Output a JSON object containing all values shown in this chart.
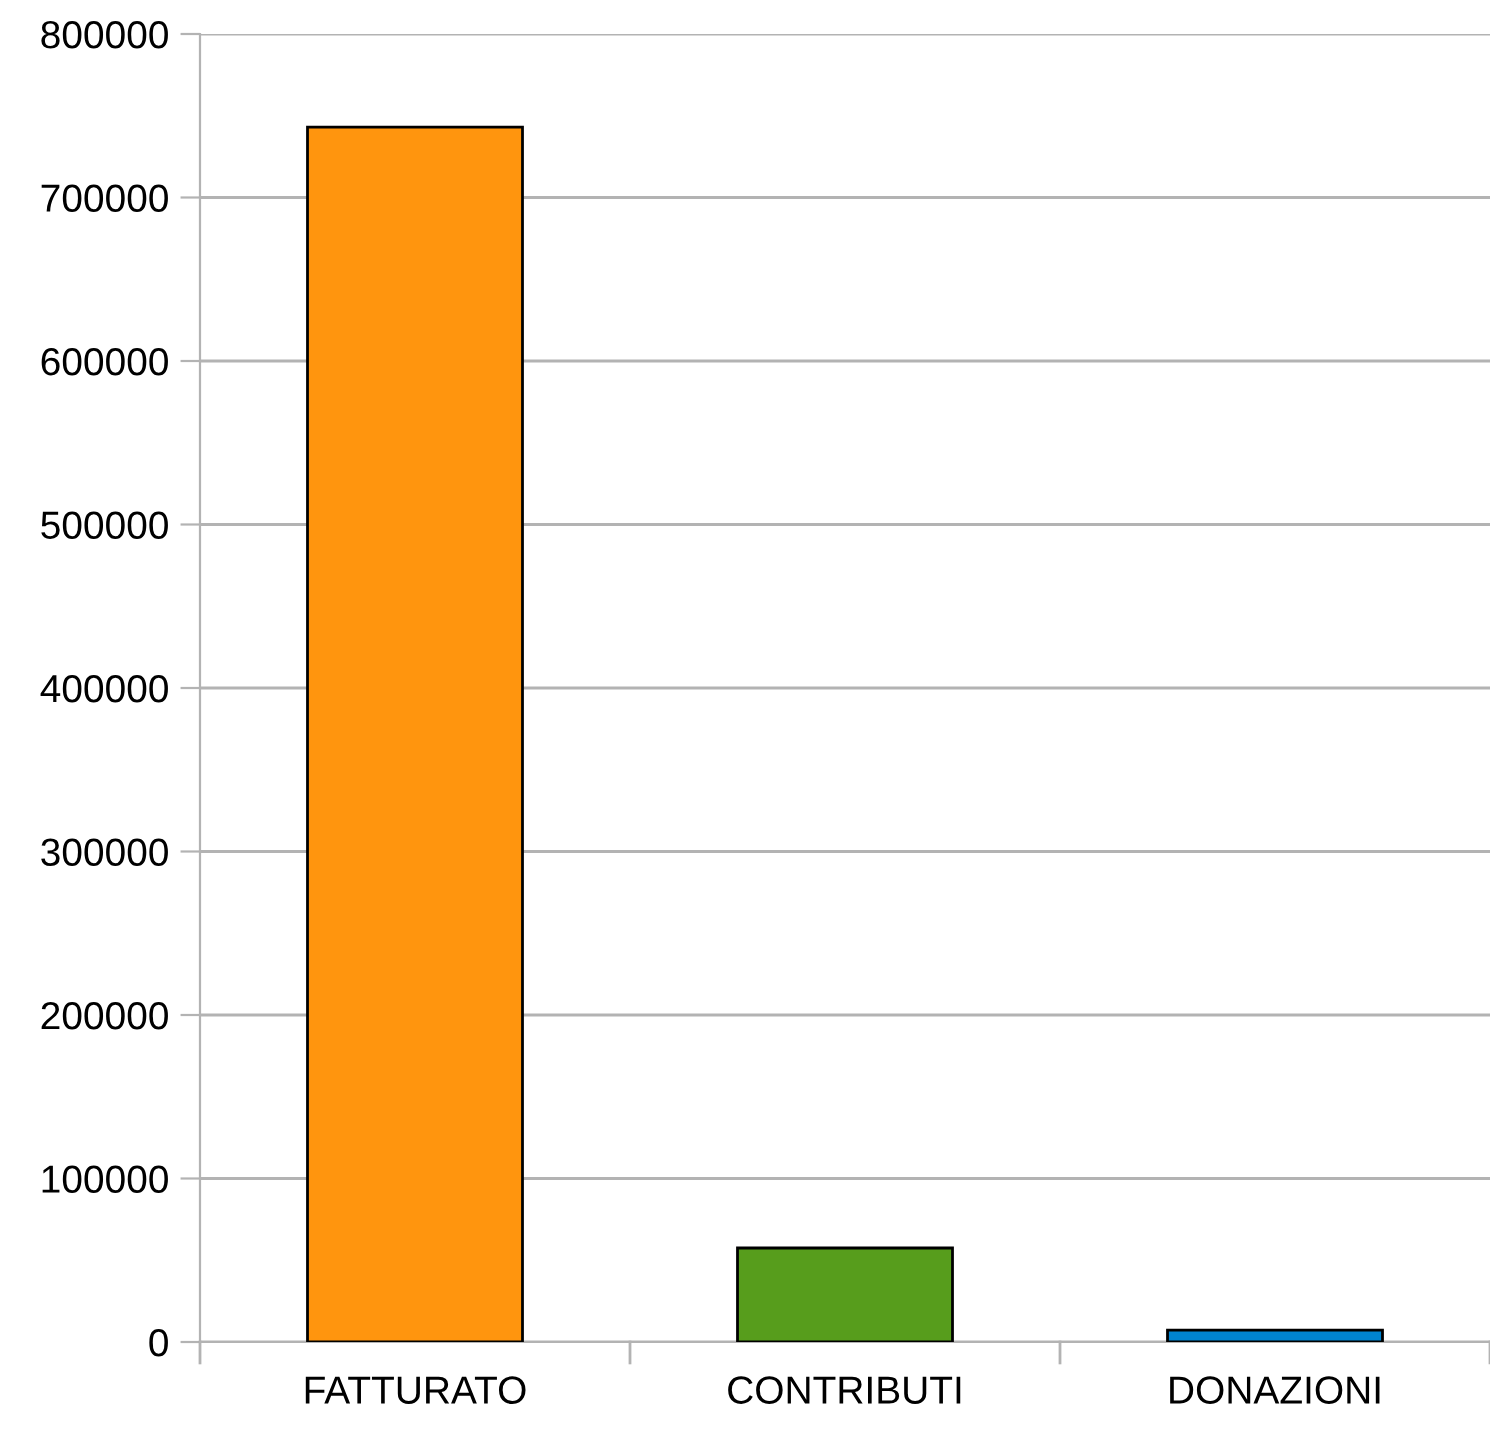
{
  "chart_data": {
    "type": "bar",
    "categories": [
      "FATTURATO",
      "CONTRIBUTI",
      "DONAZIONI"
    ],
    "values": [
      743000,
      57500,
      7300
    ],
    "colors": [
      "#ff950e",
      "#579d1c",
      "#0084d1"
    ],
    "ylim": [
      0,
      800000
    ],
    "yticks": [
      0,
      100000,
      200000,
      300000,
      400000,
      500000,
      600000,
      700000,
      800000
    ],
    "grid": "y"
  }
}
